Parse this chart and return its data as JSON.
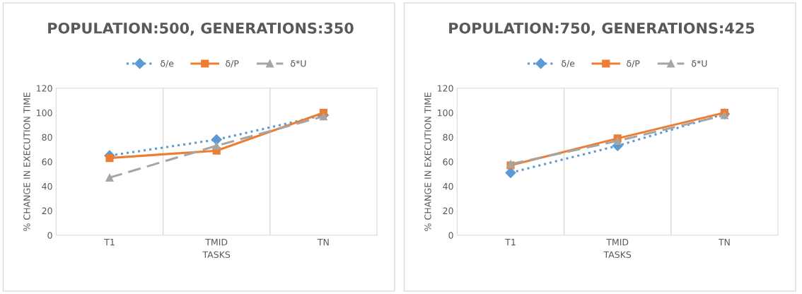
{
  "chart_data": [
    {
      "type": "line",
      "title": "POPULATION:500, GENERATIONS:350",
      "xlabel": "TASKS",
      "ylabel": "% CHANGE IN EXECUTION TIME",
      "categories": [
        "T1",
        "TMID",
        "TN"
      ],
      "ylim": [
        0,
        120
      ],
      "yticks": [
        0,
        20,
        40,
        60,
        80,
        100,
        120
      ],
      "grid": "x",
      "legend": "top",
      "series": [
        {
          "name": "δ/e",
          "color": "#5b9bd5",
          "marker": "diamond",
          "line_style": "dotted",
          "values": [
            65,
            78,
            98
          ]
        },
        {
          "name": "δ/P",
          "color": "#ed7d31",
          "marker": "square",
          "line_style": "solid",
          "values": [
            63,
            69,
            100
          ]
        },
        {
          "name": "δ*U",
          "color": "#a5a5a5",
          "marker": "triangle",
          "line_style": "dashed",
          "values": [
            47,
            73,
            97
          ]
        }
      ]
    },
    {
      "type": "line",
      "title": "POPULATION:750, GENERATIONS:425",
      "xlabel": "TASKS",
      "ylabel": "% CHANGE IN EXECUTION TIME",
      "categories": [
        "T1",
        "TMID",
        "TN"
      ],
      "ylim": [
        0,
        120
      ],
      "yticks": [
        0,
        20,
        40,
        60,
        80,
        100,
        120
      ],
      "grid": "x",
      "legend": "top",
      "series": [
        {
          "name": "δ/e",
          "color": "#5b9bd5",
          "marker": "diamond",
          "line_style": "dotted",
          "values": [
            51,
            73,
            99
          ]
        },
        {
          "name": "δ/P",
          "color": "#ed7d31",
          "marker": "square",
          "line_style": "solid",
          "values": [
            57,
            79,
            100
          ]
        },
        {
          "name": "δ*U",
          "color": "#a5a5a5",
          "marker": "triangle",
          "line_style": "dashed",
          "values": [
            58,
            77,
            98
          ]
        }
      ]
    }
  ]
}
